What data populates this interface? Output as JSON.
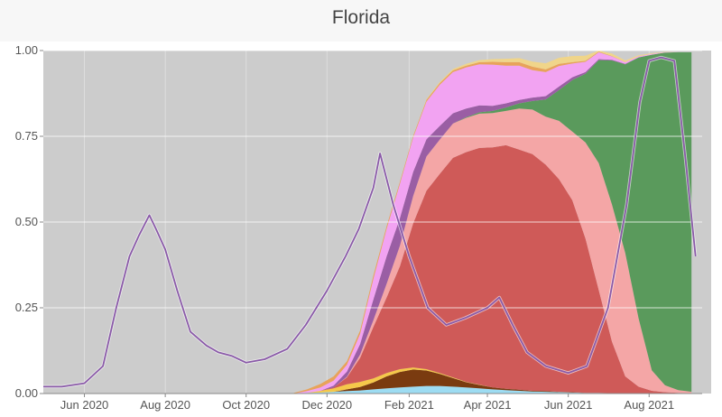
{
  "header": {
    "title": "Florida"
  },
  "chart_data": {
    "type": "area",
    "title": "Florida",
    "xlabel": "",
    "ylabel": "",
    "ylim": [
      0,
      1
    ],
    "xlim": [
      "2020-05-01",
      "2021-09-10"
    ],
    "yticks": [
      {
        "value": 0,
        "label": "0.00"
      },
      {
        "value": 0.25,
        "label": "0.25"
      },
      {
        "value": 0.5,
        "label": "0.50"
      },
      {
        "value": 0.75,
        "label": "0.75"
      },
      {
        "value": 1,
        "label": "1.00"
      }
    ],
    "xticks": [
      {
        "value": "2020-06-01",
        "label": "Jun 2020"
      },
      {
        "value": "2020-08-01",
        "label": "Aug 2020"
      },
      {
        "value": "2020-10-01",
        "label": "Oct 2020"
      },
      {
        "value": "2020-12-01",
        "label": "Dec 2020"
      },
      {
        "value": "2021-02-01",
        "label": "Feb 2021"
      },
      {
        "value": "2021-04-01",
        "label": "Apr 2021"
      },
      {
        "value": "2021-06-01",
        "label": "Jun 2021"
      },
      {
        "value": "2021-08-01",
        "label": "Aug 2021"
      }
    ],
    "grid": true,
    "background_color": "#cccccc",
    "dates": [
      "2020-11-06",
      "2020-11-16",
      "2020-11-26",
      "2020-12-06",
      "2020-12-16",
      "2020-12-26",
      "2021-01-05",
      "2021-01-15",
      "2021-01-25",
      "2021-02-04",
      "2021-02-14",
      "2021-02-24",
      "2021-03-06",
      "2021-03-16",
      "2021-03-26",
      "2021-04-05",
      "2021-04-15",
      "2021-04-25",
      "2021-05-05",
      "2021-05-15",
      "2021-05-25",
      "2021-06-04",
      "2021-06-14",
      "2021-06-24",
      "2021-07-04",
      "2021-07-14",
      "2021-07-24",
      "2021-08-03",
      "2021-08-13",
      "2021-08-23",
      "2021-09-02"
    ],
    "series": [
      {
        "color": "#9ddcf2",
        "values": [
          0,
          0.002,
          0.003,
          0.005,
          0.007,
          0.009,
          0.012,
          0.015,
          0.018,
          0.02,
          0.022,
          0.022,
          0.02,
          0.018,
          0.015,
          0.012,
          0.01,
          0.008,
          0.006,
          0.005,
          0.004,
          0.003,
          0.002,
          0.002,
          0.001,
          0,
          0,
          0,
          0,
          0,
          0
        ]
      },
      {
        "color": "#7a3b10",
        "values": [
          0,
          0,
          0,
          0,
          0.005,
          0.01,
          0.02,
          0.035,
          0.045,
          0.05,
          0.045,
          0.035,
          0.025,
          0.015,
          0.01,
          0.006,
          0.004,
          0.003,
          0.002,
          0.002,
          0.001,
          0.001,
          0,
          0,
          0,
          0,
          0,
          0,
          0,
          0,
          0
        ]
      },
      {
        "color": "#f5c84a",
        "values": [
          0,
          0,
          0.005,
          0.01,
          0.015,
          0.015,
          0.012,
          0.01,
          0.008,
          0.006,
          0.004,
          0.003,
          0.002,
          0.001,
          0.001,
          0,
          0,
          0,
          0,
          0,
          0,
          0,
          0,
          0,
          0,
          0,
          0,
          0,
          0,
          0,
          0
        ]
      },
      {
        "color": "#cf5a58",
        "values": [
          0,
          0,
          0,
          0.003,
          0.02,
          0.07,
          0.15,
          0.22,
          0.3,
          0.42,
          0.52,
          0.58,
          0.64,
          0.67,
          0.69,
          0.7,
          0.71,
          0.7,
          0.69,
          0.66,
          0.62,
          0.56,
          0.45,
          0.3,
          0.15,
          0.05,
          0.02,
          0.008,
          0.004,
          0.002,
          0.001
        ]
      },
      {
        "color": "#f4a6a6",
        "values": [
          0,
          0,
          0,
          0,
          0.002,
          0.01,
          0.02,
          0.04,
          0.06,
          0.08,
          0.1,
          0.1,
          0.1,
          0.1,
          0.1,
          0.1,
          0.1,
          0.12,
          0.13,
          0.14,
          0.17,
          0.2,
          0.28,
          0.37,
          0.4,
          0.36,
          0.2,
          0.06,
          0.02,
          0.008,
          0.004
        ]
      },
      {
        "color": "#5a9a5c",
        "values": [
          0,
          0,
          0,
          0,
          0,
          0,
          0,
          0,
          0,
          0,
          0,
          0,
          0,
          0.002,
          0.004,
          0.006,
          0.01,
          0.015,
          0.025,
          0.05,
          0.09,
          0.15,
          0.2,
          0.3,
          0.42,
          0.55,
          0.76,
          0.92,
          0.97,
          0.985,
          0.99
        ]
      },
      {
        "color": "#9a5ea4",
        "values": [
          0,
          0,
          0,
          0.005,
          0.015,
          0.03,
          0.06,
          0.08,
          0.08,
          0.07,
          0.05,
          0.04,
          0.03,
          0.025,
          0.02,
          0.015,
          0.012,
          0.01,
          0.01,
          0.01,
          0.01,
          0.008,
          0.005,
          0.003,
          0.002,
          0.001,
          0,
          0,
          0,
          0,
          0
        ]
      },
      {
        "color": "#f2a3f2",
        "values": [
          0,
          0.005,
          0.01,
          0.015,
          0.02,
          0.03,
          0.06,
          0.08,
          0.1,
          0.1,
          0.11,
          0.12,
          0.12,
          0.12,
          0.12,
          0.12,
          0.11,
          0.1,
          0.08,
          0.07,
          0.06,
          0.04,
          0.03,
          0.02,
          0.01,
          0.005,
          0.003,
          0.002,
          0.001,
          0,
          0
        ]
      },
      {
        "color": "#e8a35a",
        "values": [
          0.002,
          0.005,
          0.01,
          0.012,
          0.01,
          0.01,
          0.01,
          0.008,
          0.006,
          0.005,
          0.005,
          0.005,
          0.005,
          0.005,
          0.006,
          0.008,
          0.01,
          0.01,
          0.01,
          0.008,
          0.006,
          0.004,
          0.003,
          0.002,
          0.001,
          0,
          0,
          0,
          0,
          0,
          0
        ]
      },
      {
        "color": "#f0d58a",
        "values": [
          0,
          0,
          0,
          0,
          0,
          0,
          0,
          0,
          0,
          0,
          0.002,
          0.003,
          0.004,
          0.005,
          0.006,
          0.008,
          0.01,
          0.012,
          0.015,
          0.018,
          0.018,
          0.018,
          0.015,
          0.01,
          0.007,
          0.005,
          0.003,
          0.002,
          0.001,
          0,
          0
        ]
      }
    ],
    "line": {
      "color": "#8a5aa8",
      "x": [
        "2020-05-01",
        "2020-05-15",
        "2020-06-01",
        "2020-06-15",
        "2020-06-25",
        "2020-07-05",
        "2020-07-12",
        "2020-07-20",
        "2020-07-25",
        "2020-08-01",
        "2020-08-10",
        "2020-08-20",
        "2020-09-01",
        "2020-09-10",
        "2020-09-20",
        "2020-10-01",
        "2020-10-15",
        "2020-11-01",
        "2020-11-15",
        "2020-12-01",
        "2020-12-15",
        "2020-12-25",
        "2021-01-05",
        "2021-01-10",
        "2021-01-20",
        "2021-02-01",
        "2021-02-15",
        "2021-03-01",
        "2021-03-15",
        "2021-04-01",
        "2021-04-10",
        "2021-04-20",
        "2021-05-01",
        "2021-05-15",
        "2021-06-01",
        "2021-06-15",
        "2021-07-01",
        "2021-07-15",
        "2021-07-25",
        "2021-08-01",
        "2021-08-10",
        "2021-08-20",
        "2021-08-28",
        "2021-09-05"
      ],
      "values": [
        0.02,
        0.02,
        0.03,
        0.08,
        0.25,
        0.4,
        0.46,
        0.52,
        0.48,
        0.42,
        0.3,
        0.18,
        0.14,
        0.12,
        0.11,
        0.09,
        0.1,
        0.13,
        0.2,
        0.3,
        0.4,
        0.48,
        0.6,
        0.7,
        0.55,
        0.4,
        0.25,
        0.2,
        0.22,
        0.25,
        0.28,
        0.2,
        0.12,
        0.08,
        0.06,
        0.08,
        0.25,
        0.55,
        0.85,
        0.97,
        0.98,
        0.97,
        0.7,
        0.4
      ]
    }
  }
}
